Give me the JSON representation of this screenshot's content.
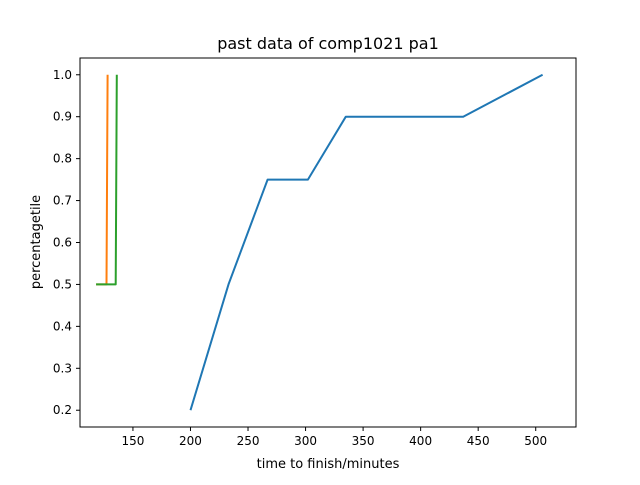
{
  "chart_data": {
    "type": "line",
    "title": "past data of comp1021 pa1",
    "xlabel": "time to finish/minutes",
    "ylabel": "percentagetile",
    "xlim": [
      104,
      535
    ],
    "ylim": [
      0.16,
      1.04
    ],
    "xticks": [
      150,
      200,
      250,
      300,
      350,
      400,
      450,
      500
    ],
    "yticks": [
      0.2,
      0.3,
      0.4,
      0.5,
      0.6,
      0.7,
      0.8,
      0.9,
      1.0
    ],
    "ytick_labels": [
      "0.2",
      "0.3",
      "0.4",
      "0.5",
      "0.6",
      "0.7",
      "0.8",
      "0.9",
      "1.0"
    ],
    "grid": false,
    "series": [
      {
        "color": "#1f77b4",
        "x": [
          200,
          233,
          267,
          302,
          335,
          437,
          506
        ],
        "y": [
          0.2,
          0.5,
          0.75,
          0.75,
          0.9,
          0.9,
          1.0
        ]
      },
      {
        "color": "#ff7f0e",
        "x": [
          118,
          127,
          128
        ],
        "y": [
          0.5,
          0.5,
          1.0
        ]
      },
      {
        "color": "#2ca02c",
        "x": [
          118,
          135,
          136
        ],
        "y": [
          0.5,
          0.5,
          1.0
        ]
      }
    ]
  }
}
